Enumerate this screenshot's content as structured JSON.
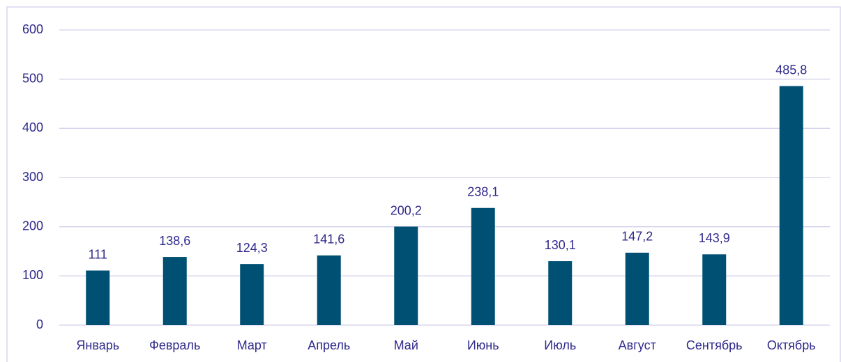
{
  "chart_data": {
    "type": "bar",
    "categories": [
      "Январь",
      "Февраль",
      "Март",
      "Апрель",
      "Май",
      "Июнь",
      "Июль",
      "Август",
      "Сентябрь",
      "Октябрь"
    ],
    "values": [
      111,
      138.6,
      124.3,
      141.6,
      200.2,
      238.1,
      130.1,
      147.2,
      143.9,
      485.8
    ],
    "value_labels": [
      "111",
      "138,6",
      "124,3",
      "141,6",
      "200,2",
      "238,1",
      "130,1",
      "147,2",
      "143,9",
      "485,8"
    ],
    "color": "#005073",
    "ylim": [
      0,
      600
    ],
    "yticks": [
      0,
      100,
      200,
      300,
      400,
      500,
      600
    ],
    "grid": true
  }
}
